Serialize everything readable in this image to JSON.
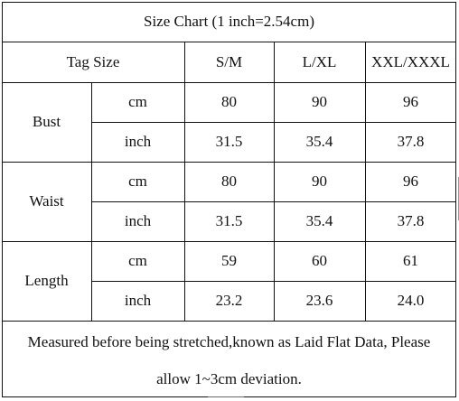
{
  "title": "Size Chart (1 inch=2.54cm)",
  "header": {
    "tag_size": "Tag Size",
    "sizes": [
      "S/M",
      "L/XL",
      "XXL/XXXL"
    ]
  },
  "rows": [
    {
      "label": "Bust",
      "cm": {
        "unit": "cm",
        "values": [
          "80",
          "90",
          "96"
        ]
      },
      "inch": {
        "unit": "inch",
        "values": [
          "31.5",
          "35.4",
          "37.8"
        ]
      }
    },
    {
      "label": "Waist",
      "cm": {
        "unit": "cm",
        "values": [
          "80",
          "90",
          "96"
        ]
      },
      "inch": {
        "unit": "inch",
        "values": [
          "31.5",
          "35.4",
          "37.8"
        ]
      }
    },
    {
      "label": "Length",
      "cm": {
        "unit": "cm",
        "values": [
          "59",
          "60",
          "61"
        ]
      },
      "inch": {
        "unit": "inch",
        "values": [
          "23.2",
          "23.6",
          "24.0"
        ]
      }
    }
  ],
  "note": {
    "line1": "Measured before being stretched,known as Laid Flat Data, Please",
    "line2": "allow 1~3cm deviation."
  }
}
